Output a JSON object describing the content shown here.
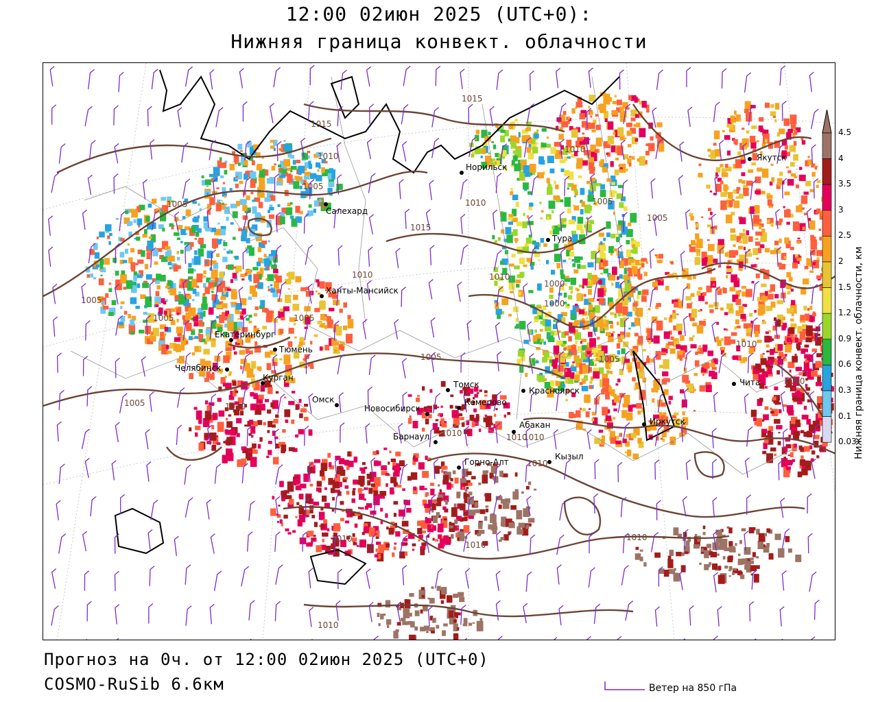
{
  "header": {
    "title_line1": "12:00 02июн 2025 (UTC+0):",
    "title_line2": "Нижняя граница конвект. облачности"
  },
  "footer": {
    "forecast": "Прогноз на 0ч. от 12:00 02июн 2025 (UTC+0)",
    "model": "COSMO-RuSib 6.6км",
    "wind_legend": "Ветер на 850 гПа"
  },
  "legend": {
    "title": "Нижняя граница конвект. облачности, км",
    "ticks": [
      "4.5",
      "4",
      "3.5",
      "3",
      "2.5",
      "2",
      "1.5",
      "1.2",
      "0.9",
      "0.6",
      "0.3",
      "0.1",
      "0.03"
    ],
    "colors": [
      "#9c7465",
      "#a31c1c",
      "#e4005a",
      "#ff5f3d",
      "#f7a21f",
      "#e8c434",
      "#f0e040",
      "#9bd72a",
      "#2ab840",
      "#27a3e0",
      "#6ec8f0",
      "#d8d8f0"
    ]
  },
  "map": {
    "cities": [
      {
        "name": "Якутск"
      },
      {
        "name": "Норильск"
      },
      {
        "name": "Салехард"
      },
      {
        "name": "Тура"
      },
      {
        "name": "Ханты-Мансийск"
      },
      {
        "name": "Екатеринбург"
      },
      {
        "name": "Тюмень"
      },
      {
        "name": "Челябинск"
      },
      {
        "name": "Курган"
      },
      {
        "name": "Омск"
      },
      {
        "name": "Новосибирск"
      },
      {
        "name": "Томск"
      },
      {
        "name": "Кемерово"
      },
      {
        "name": "Красноярск"
      },
      {
        "name": "Барнаул"
      },
      {
        "name": "Абакан"
      },
      {
        "name": "Горно-Алт"
      },
      {
        "name": "Кызыл"
      },
      {
        "name": "Иркутск"
      },
      {
        "name": "Чита"
      }
    ],
    "isobar_labels": [
      "1015",
      "1015",
      "1010",
      "1005",
      "1005",
      "1010",
      "1015",
      "1010",
      "1010",
      "1005",
      "1005",
      "1010",
      "1005",
      "1005",
      "1000",
      "1000",
      "1005",
      "1005",
      "1005",
      "1010",
      "1010",
      "1010",
      "1010",
      "1010",
      "1010",
      "1010",
      "1010",
      "1010",
      "1010",
      "1000",
      "1005"
    ]
  }
}
